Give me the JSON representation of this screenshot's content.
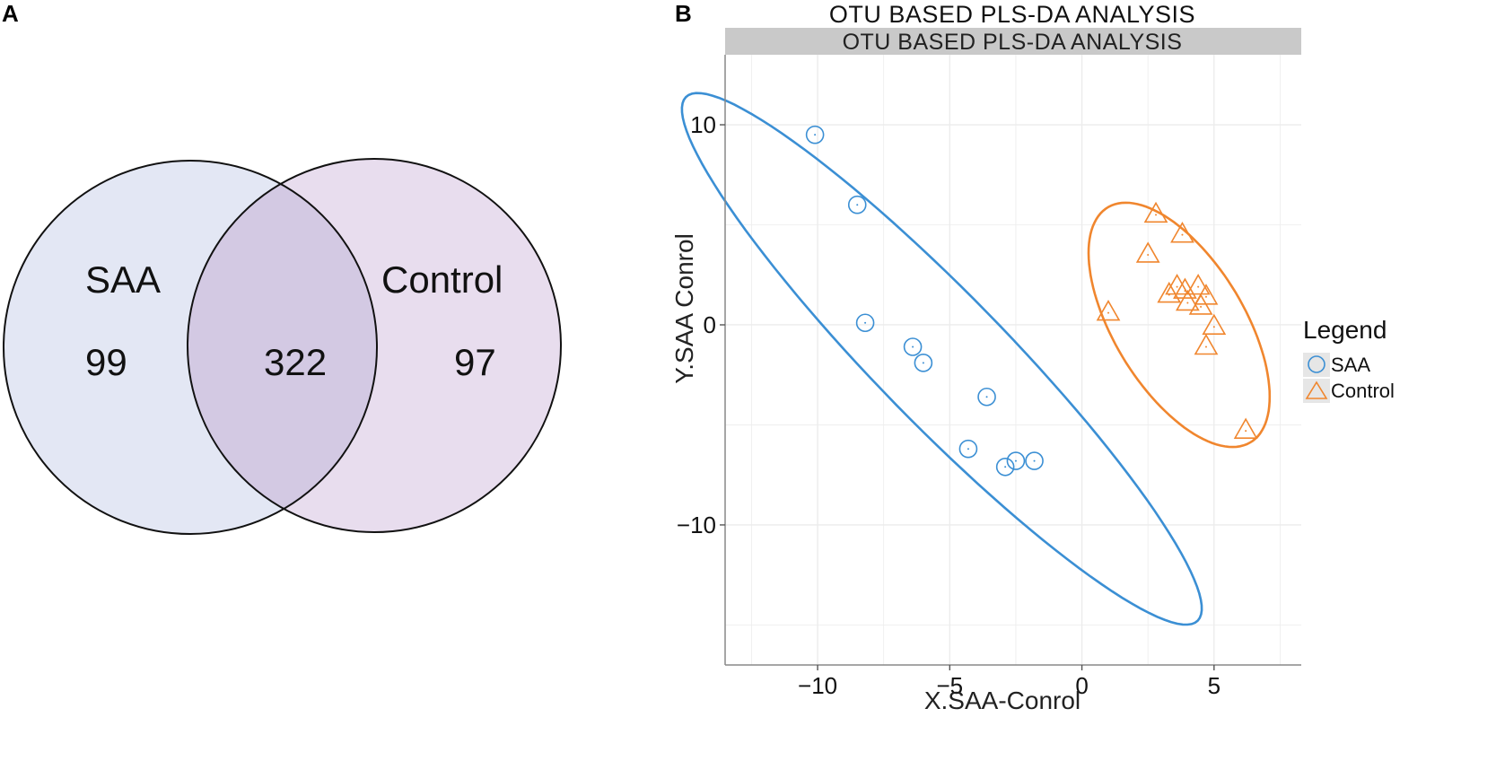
{
  "panels": {
    "a_label": "A",
    "b_label": "B"
  },
  "venn": {
    "left_set": "SAA",
    "right_set": "Control",
    "left_only": "99",
    "intersection": "322",
    "right_only": "97",
    "colors": {
      "left_fill": "#e3e7f4",
      "right_fill": "#e8ddee",
      "overlap_fill": "#d3c9e3",
      "stroke": "#111111"
    }
  },
  "chart_data": {
    "type": "scatter",
    "title": "OTU BASED PLS-DA ANALYSIS",
    "strip_title": "OTU BASED PLS-DA ANALYSIS",
    "xlabel": "X.SAA-Conrol",
    "ylabel": "Y.SAA  Conrol",
    "xlim": [
      -13.5,
      8.3
    ],
    "ylim": [
      -17,
      13.5
    ],
    "xticks": [
      -10,
      -5,
      0,
      5
    ],
    "xtick_labels": [
      "−10",
      "−5",
      "0",
      "5"
    ],
    "yticks": [
      10,
      0,
      -10
    ],
    "ytick_labels": [
      "10",
      "0",
      "−10"
    ],
    "grid": true,
    "legend": {
      "title": "Legend",
      "position": "right"
    },
    "series": [
      {
        "name": "SAA",
        "marker": "circle",
        "color": "#3b8fd4",
        "points": [
          [
            -10.1,
            9.5
          ],
          [
            -8.5,
            6.0
          ],
          [
            -8.2,
            0.1
          ],
          [
            -6.4,
            -1.1
          ],
          [
            -6.0,
            -1.9
          ],
          [
            -3.6,
            -3.6
          ],
          [
            -4.3,
            -6.2
          ],
          [
            -2.9,
            -7.1
          ],
          [
            -2.5,
            -6.8
          ],
          [
            -1.8,
            -6.8
          ]
        ],
        "ellipse": {
          "cx": -5.3,
          "cy": -1.7,
          "rx": 16.3,
          "ry": 2.75,
          "angle_deg": -54
        }
      },
      {
        "name": "Control",
        "marker": "triangle",
        "color": "#f0862e",
        "points": [
          [
            2.8,
            5.5
          ],
          [
            3.8,
            4.5
          ],
          [
            2.5,
            3.5
          ],
          [
            1.0,
            0.6
          ],
          [
            3.3,
            1.5
          ],
          [
            3.6,
            1.9
          ],
          [
            3.9,
            1.7
          ],
          [
            4.4,
            1.9
          ],
          [
            4.7,
            1.4
          ],
          [
            4.0,
            1.1
          ],
          [
            4.5,
            0.9
          ],
          [
            5.0,
            -0.1
          ],
          [
            4.7,
            -1.1
          ],
          [
            6.2,
            -5.3
          ]
        ],
        "ellipse": {
          "cx": 3.68,
          "cy": 0.0,
          "rx": 6.5,
          "ry": 2.6,
          "angle_deg": -68
        }
      }
    ],
    "colors": {
      "strip_bg": "#c9c9c9",
      "grid": "#ececec",
      "frame": "#888888",
      "legend_key_bg": "#e6e6e6"
    }
  }
}
